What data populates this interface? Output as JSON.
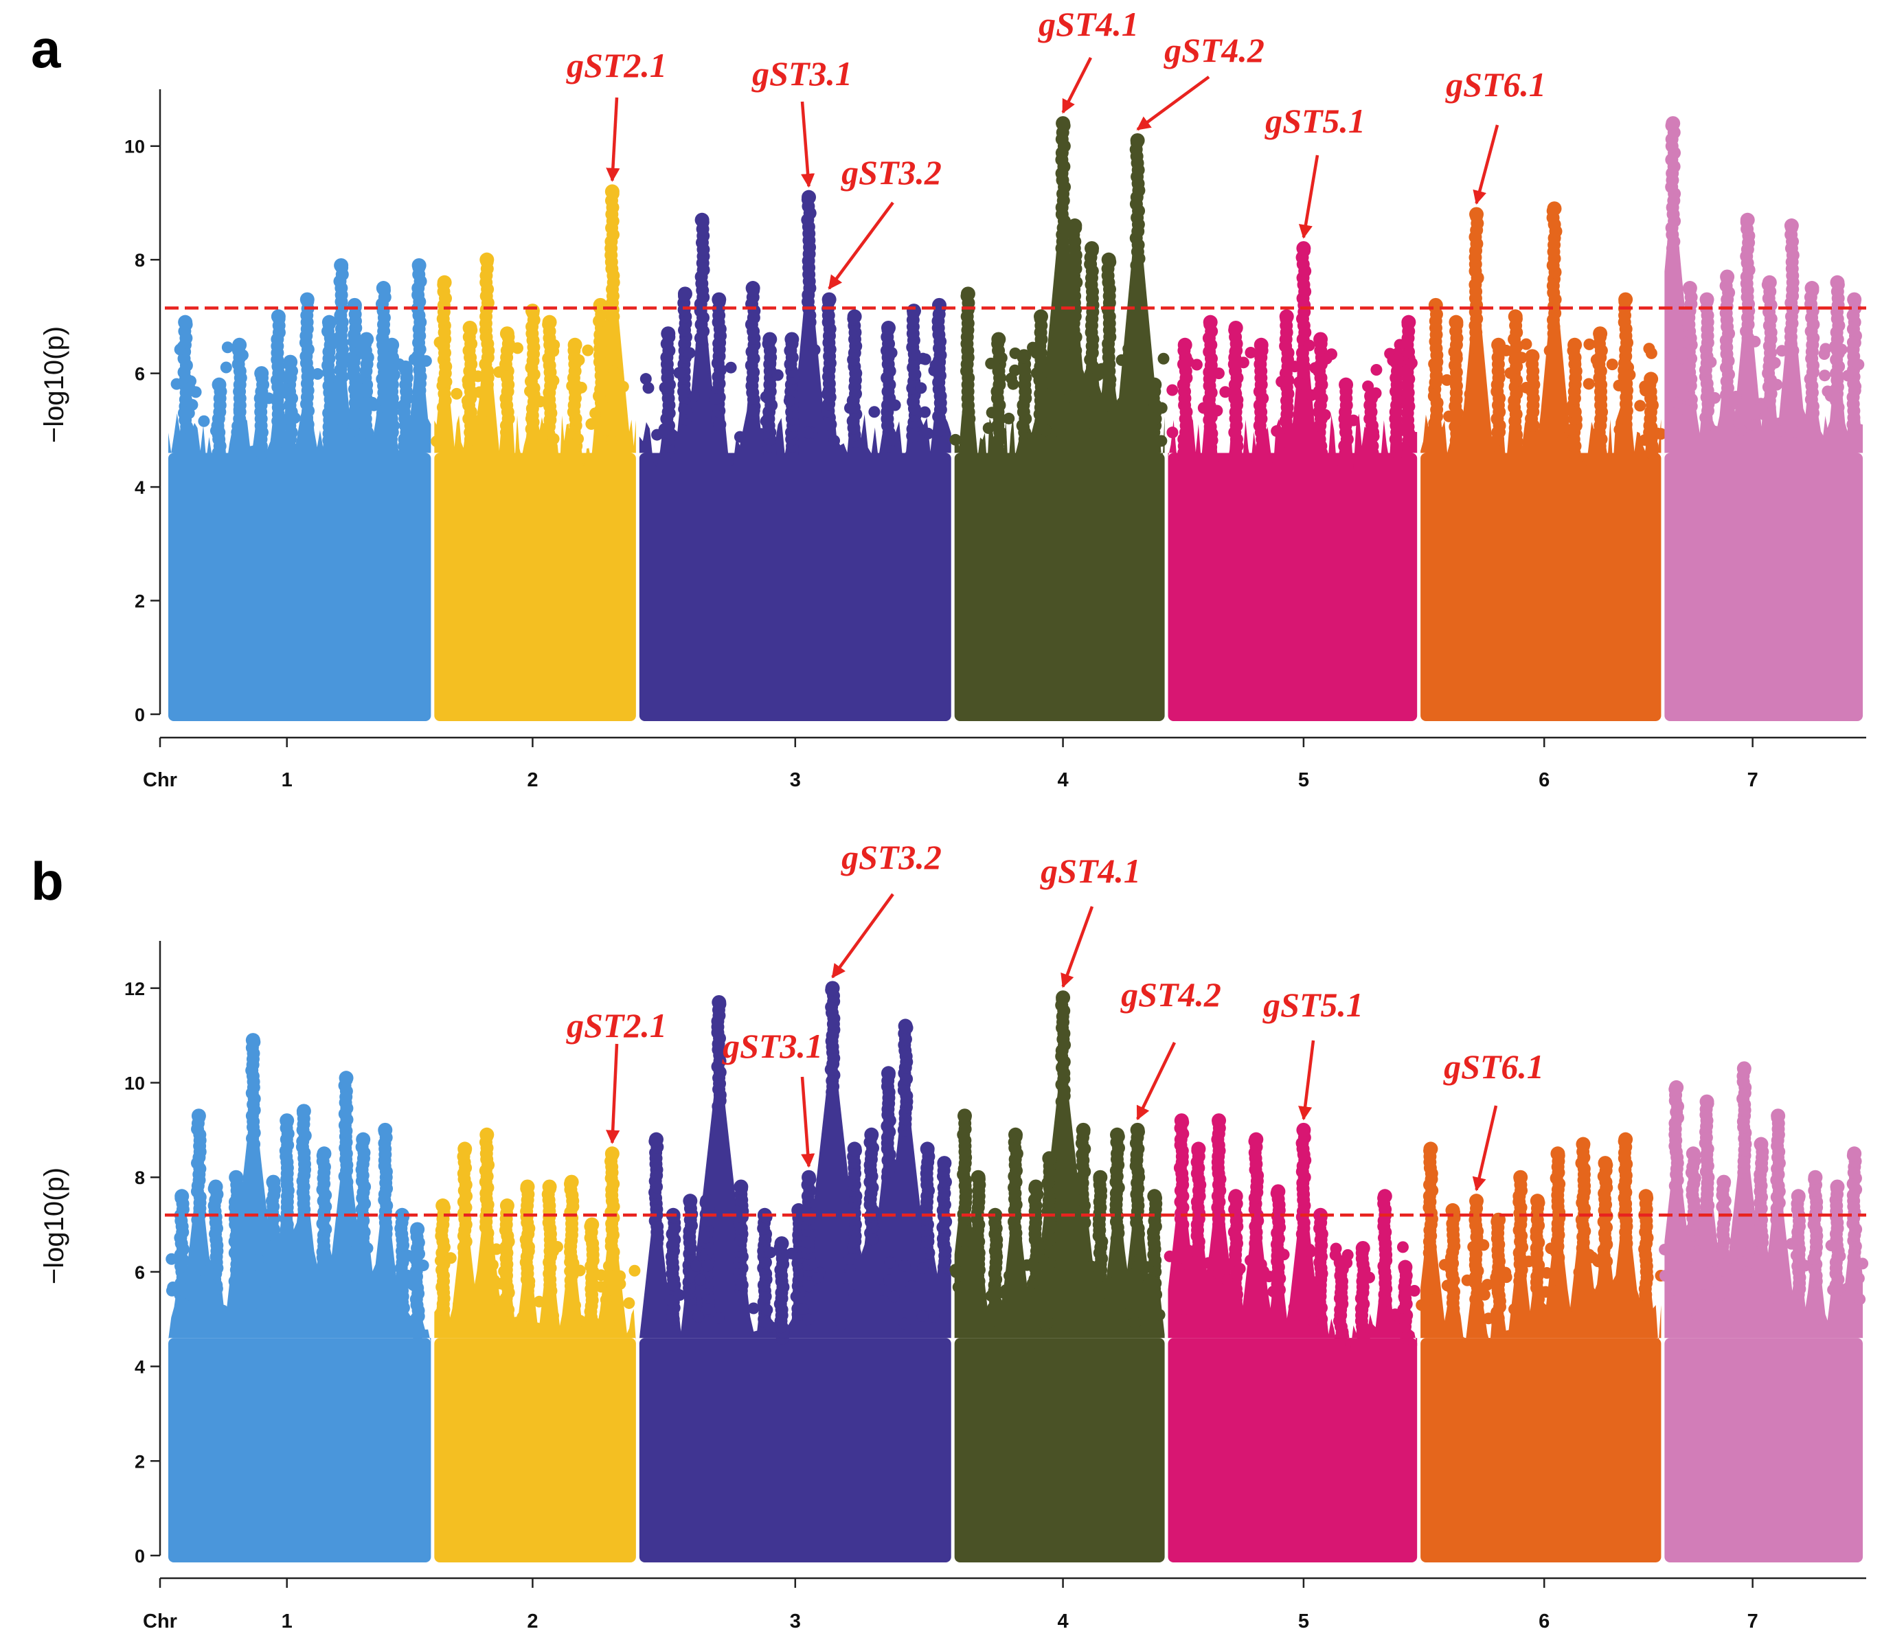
{
  "chart_data": [
    {
      "panel": "a",
      "type": "scatter",
      "subtype": "manhattan",
      "xlabel": "Chr",
      "ylabel": "−log10(p)",
      "ylim": [
        0,
        11
      ],
      "yticks": [
        0,
        2,
        4,
        6,
        8,
        10
      ],
      "threshold": 7.15,
      "chromosomes": [
        {
          "name": "1",
          "start": 0.0,
          "end": 1.55,
          "label_pos": 0.7,
          "color": "#4A96DB",
          "peaks": [
            [
              0.1,
              6.9
            ],
            [
              0.3,
              5.8
            ],
            [
              0.42,
              6.5
            ],
            [
              0.55,
              6.0
            ],
            [
              0.65,
              7.0
            ],
            [
              0.72,
              6.2
            ],
            [
              0.82,
              7.3
            ],
            [
              0.95,
              6.9
            ],
            [
              1.02,
              7.9
            ],
            [
              1.1,
              7.2
            ],
            [
              1.17,
              6.6
            ],
            [
              1.27,
              7.5
            ],
            [
              1.32,
              6.5
            ],
            [
              1.4,
              6.1
            ],
            [
              1.48,
              7.9
            ]
          ]
        },
        {
          "name": "2",
          "start": 1.57,
          "end": 2.76,
          "label_pos": 2.15,
          "color": "#F4BF22",
          "peaks": [
            [
              1.63,
              7.6
            ],
            [
              1.78,
              6.8
            ],
            [
              1.88,
              8.0
            ],
            [
              2.0,
              6.7
            ],
            [
              2.15,
              7.1
            ],
            [
              2.25,
              6.9
            ],
            [
              2.4,
              6.5
            ],
            [
              2.55,
              7.2
            ],
            [
              2.62,
              9.2
            ]
          ]
        },
        {
          "name": "3",
          "start": 2.78,
          "end": 4.62,
          "label_pos": 3.7,
          "color": "#403592",
          "peaks": [
            [
              2.95,
              6.7
            ],
            [
              3.05,
              7.4
            ],
            [
              3.15,
              8.7
            ],
            [
              3.25,
              7.3
            ],
            [
              3.45,
              7.5
            ],
            [
              3.55,
              6.6
            ],
            [
              3.68,
              6.6
            ],
            [
              3.78,
              9.1
            ],
            [
              3.9,
              7.3
            ],
            [
              4.05,
              7.0
            ],
            [
              4.25,
              6.8
            ],
            [
              4.4,
              7.1
            ],
            [
              4.55,
              7.2
            ]
          ]
        },
        {
          "name": "4",
          "start": 4.64,
          "end": 5.88,
          "label_pos": 5.28,
          "color": "#4A5226",
          "peaks": [
            [
              4.72,
              7.4
            ],
            [
              4.9,
              6.6
            ],
            [
              5.05,
              6.3
            ],
            [
              5.15,
              7.0
            ],
            [
              5.28,
              10.4
            ],
            [
              5.35,
              8.6
            ],
            [
              5.45,
              8.2
            ],
            [
              5.55,
              8.0
            ],
            [
              5.72,
              10.1
            ],
            [
              5.82,
              5.8
            ]
          ]
        },
        {
          "name": "5",
          "start": 5.9,
          "end": 7.37,
          "label_pos": 6.7,
          "color": "#D81672",
          "peaks": [
            [
              6.0,
              6.5
            ],
            [
              6.15,
              6.9
            ],
            [
              6.3,
              6.8
            ],
            [
              6.45,
              6.5
            ],
            [
              6.6,
              7.0
            ],
            [
              6.7,
              8.2
            ],
            [
              6.8,
              6.6
            ],
            [
              6.95,
              5.8
            ],
            [
              7.1,
              5.6
            ],
            [
              7.25,
              6.2
            ],
            [
              7.32,
              6.9
            ]
          ]
        },
        {
          "name": "6",
          "start": 7.39,
          "end": 8.81,
          "label_pos": 8.12,
          "color": "#E5661C",
          "peaks": [
            [
              7.48,
              7.2
            ],
            [
              7.6,
              6.9
            ],
            [
              7.72,
              8.8
            ],
            [
              7.85,
              6.5
            ],
            [
              7.95,
              7.0
            ],
            [
              8.05,
              6.3
            ],
            [
              8.18,
              8.9
            ],
            [
              8.3,
              6.5
            ],
            [
              8.45,
              6.7
            ],
            [
              8.6,
              7.3
            ],
            [
              8.75,
              5.9
            ]
          ]
        },
        {
          "name": "7",
          "start": 8.83,
          "end": 10.0,
          "label_pos": 9.35,
          "color": "#D27DB8",
          "peaks": [
            [
              8.88,
              10.4
            ],
            [
              8.98,
              7.5
            ],
            [
              9.08,
              7.3
            ],
            [
              9.2,
              7.7
            ],
            [
              9.32,
              8.7
            ],
            [
              9.45,
              7.6
            ],
            [
              9.58,
              8.6
            ],
            [
              9.7,
              7.5
            ],
            [
              9.85,
              7.6
            ],
            [
              9.95,
              7.3
            ]
          ]
        }
      ],
      "annotations": [
        {
          "label": "gST2.1",
          "point": [
            2.62,
            9.2
          ]
        },
        {
          "label": "gST3.1",
          "point": [
            3.78,
            9.1
          ]
        },
        {
          "label": "gST3.2",
          "point": [
            3.9,
            7.3
          ]
        },
        {
          "label": "gST4.1",
          "point": [
            5.28,
            10.4
          ]
        },
        {
          "label": "gST4.2",
          "point": [
            5.72,
            10.1
          ]
        },
        {
          "label": "gST5.1",
          "point": [
            6.7,
            8.2
          ]
        },
        {
          "label": "gST6.1",
          "point": [
            7.72,
            8.8
          ]
        }
      ]
    },
    {
      "panel": "b",
      "type": "scatter",
      "subtype": "manhattan",
      "xlabel": "Chr",
      "ylabel": "−log10(p)",
      "ylim": [
        0,
        13
      ],
      "yticks": [
        0,
        2,
        4,
        6,
        8,
        10,
        12
      ],
      "threshold": 7.2,
      "chromosomes": [
        {
          "name": "1",
          "start": 0.0,
          "end": 1.55,
          "label_pos": 0.7,
          "color": "#4A96DB",
          "peaks": [
            [
              0.08,
              7.6
            ],
            [
              0.18,
              9.3
            ],
            [
              0.28,
              7.8
            ],
            [
              0.4,
              8.0
            ],
            [
              0.5,
              10.9
            ],
            [
              0.62,
              7.9
            ],
            [
              0.7,
              9.2
            ],
            [
              0.8,
              9.4
            ],
            [
              0.92,
              8.5
            ],
            [
              1.05,
              10.1
            ],
            [
              1.15,
              8.8
            ],
            [
              1.28,
              9.0
            ],
            [
              1.38,
              7.2
            ],
            [
              1.47,
              6.9
            ]
          ]
        },
        {
          "name": "2",
          "start": 1.57,
          "end": 2.76,
          "label_pos": 2.15,
          "color": "#F4BF22",
          "peaks": [
            [
              1.62,
              7.4
            ],
            [
              1.75,
              8.6
            ],
            [
              1.88,
              8.9
            ],
            [
              2.0,
              7.4
            ],
            [
              2.12,
              7.8
            ],
            [
              2.25,
              7.8
            ],
            [
              2.38,
              7.9
            ],
            [
              2.5,
              7.0
            ],
            [
              2.62,
              8.5
            ]
          ]
        },
        {
          "name": "3",
          "start": 2.78,
          "end": 4.62,
          "label_pos": 3.7,
          "color": "#403592",
          "peaks": [
            [
              2.88,
              8.8
            ],
            [
              2.98,
              7.2
            ],
            [
              3.08,
              7.5
            ],
            [
              3.18,
              7.5
            ],
            [
              3.25,
              11.7
            ],
            [
              3.38,
              7.8
            ],
            [
              3.52,
              7.2
            ],
            [
              3.62,
              6.6
            ],
            [
              3.72,
              7.3
            ],
            [
              3.78,
              8.0
            ],
            [
              3.92,
              12.0
            ],
            [
              4.05,
              8.6
            ],
            [
              4.15,
              8.9
            ],
            [
              4.25,
              10.2
            ],
            [
              4.35,
              11.2
            ],
            [
              4.48,
              8.6
            ],
            [
              4.58,
              8.3
            ]
          ]
        },
        {
          "name": "4",
          "start": 4.64,
          "end": 5.88,
          "label_pos": 5.28,
          "color": "#4A5226",
          "peaks": [
            [
              4.7,
              9.3
            ],
            [
              4.78,
              8.0
            ],
            [
              4.88,
              7.2
            ],
            [
              5.0,
              8.9
            ],
            [
              5.12,
              7.8
            ],
            [
              5.2,
              8.4
            ],
            [
              5.28,
              11.8
            ],
            [
              5.4,
              9.0
            ],
            [
              5.5,
              8.0
            ],
            [
              5.6,
              8.9
            ],
            [
              5.72,
              9.0
            ],
            [
              5.82,
              7.6
            ]
          ]
        },
        {
          "name": "5",
          "start": 5.9,
          "end": 7.37,
          "label_pos": 6.7,
          "color": "#D81672",
          "peaks": [
            [
              5.98,
              9.2
            ],
            [
              6.08,
              8.6
            ],
            [
              6.2,
              9.2
            ],
            [
              6.3,
              7.6
            ],
            [
              6.42,
              8.8
            ],
            [
              6.55,
              7.7
            ],
            [
              6.7,
              9.0
            ],
            [
              6.8,
              7.2
            ],
            [
              6.92,
              6.2
            ],
            [
              7.05,
              6.5
            ],
            [
              7.18,
              7.6
            ],
            [
              7.3,
              6.1
            ]
          ]
        },
        {
          "name": "6",
          "start": 7.39,
          "end": 8.81,
          "label_pos": 8.12,
          "color": "#E5661C",
          "peaks": [
            [
              7.45,
              8.6
            ],
            [
              7.58,
              7.3
            ],
            [
              7.72,
              7.5
            ],
            [
              7.85,
              7.1
            ],
            [
              7.98,
              8.0
            ],
            [
              8.08,
              7.5
            ],
            [
              8.2,
              8.5
            ],
            [
              8.35,
              8.7
            ],
            [
              8.48,
              8.3
            ],
            [
              8.6,
              8.8
            ],
            [
              8.72,
              7.6
            ]
          ]
        },
        {
          "name": "7",
          "start": 8.83,
          "end": 10.0,
          "label_pos": 9.35,
          "color": "#D27DB8",
          "peaks": [
            [
              8.9,
              9.9
            ],
            [
              9.0,
              8.5
            ],
            [
              9.08,
              9.6
            ],
            [
              9.18,
              7.9
            ],
            [
              9.3,
              10.3
            ],
            [
              9.4,
              8.7
            ],
            [
              9.5,
              9.3
            ],
            [
              9.62,
              7.6
            ],
            [
              9.72,
              8.0
            ],
            [
              9.85,
              7.8
            ],
            [
              9.95,
              8.5
            ]
          ]
        }
      ],
      "annotations": [
        {
          "label": "gST2.1",
          "point": [
            2.62,
            8.5
          ]
        },
        {
          "label": "gST3.1",
          "point": [
            3.78,
            8.0
          ]
        },
        {
          "label": "gST3.2",
          "point": [
            3.92,
            12.0
          ]
        },
        {
          "label": "gST4.1",
          "point": [
            5.28,
            11.8
          ]
        },
        {
          "label": "gST4.2",
          "point": [
            5.72,
            9.0
          ]
        },
        {
          "label": "gST5.1",
          "point": [
            6.7,
            9.0
          ]
        },
        {
          "label": "gST6.1",
          "point": [
            7.72,
            7.5
          ]
        }
      ]
    }
  ],
  "style": {
    "threshold_color": "#E8231F",
    "annotation_color": "#E8231F"
  }
}
